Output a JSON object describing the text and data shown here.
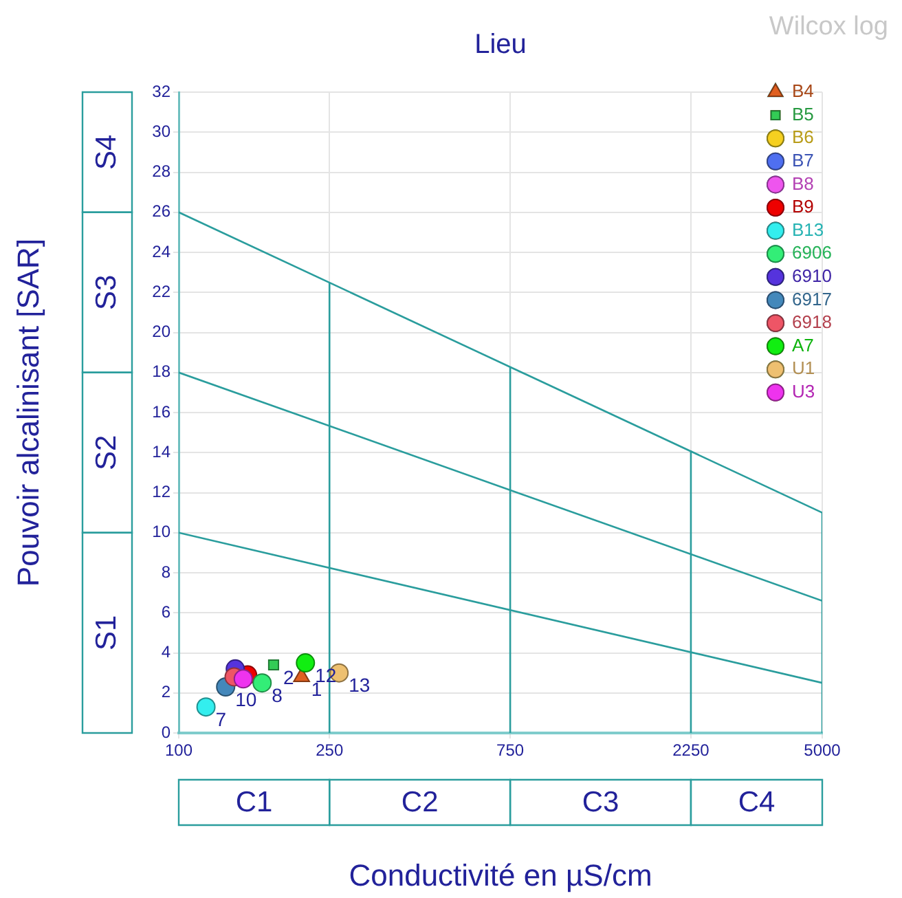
{
  "chart_data": {
    "type": "scatter",
    "title": "Lieu",
    "xlabel": "Conductivité en µS/cm",
    "ylabel": "Pouvoir alcalinisant [SAR]",
    "annotations": [
      "Wilcox log",
      "S1",
      "S2",
      "S3",
      "S4",
      "C1",
      "C2",
      "C3",
      "C4",
      {
        "text": "1",
        "x": 211,
        "y": 2.8
      },
      {
        "text": "2",
        "x": 178,
        "y": 3.4
      },
      {
        "text": "7",
        "x": 118,
        "y": 1.3
      },
      {
        "text": "8",
        "x": 166,
        "y": 2.5
      },
      {
        "text": "10",
        "x": 133,
        "y": 2.3
      },
      {
        "text": "12",
        "x": 216,
        "y": 3.5
      },
      {
        "text": "13",
        "x": 265,
        "y": 3.0
      }
    ],
    "log": "x",
    "xlim": [
      100,
      5000
    ],
    "xticks": [
      100,
      250,
      750,
      2250,
      5000
    ],
    "ylim": [
      0,
      32
    ],
    "yticks": [
      0,
      2,
      4,
      6,
      8,
      10,
      12,
      14,
      16,
      18,
      20,
      22,
      24,
      26,
      28,
      30,
      32
    ],
    "grid": true,
    "legend": "top right",
    "series": [
      {
        "type": "line",
        "color": "#2a9d9d",
        "x": [
          100,
          5000
        ],
        "values": [
          26,
          11
        ]
      },
      {
        "type": "line",
        "color": "#2a9d9d",
        "x": [
          100,
          5000
        ],
        "values": [
          18,
          6.6
        ]
      },
      {
        "type": "line",
        "color": "#2a9d9d",
        "x": [
          100,
          5000
        ],
        "values": [
          10,
          2.5
        ]
      },
      {
        "type": "line",
        "color": "#2a9d9d",
        "x": [
          250,
          250
        ],
        "values": [
          0,
          22.5
        ]
      },
      {
        "type": "line",
        "color": "#2a9d9d",
        "x": [
          750,
          750
        ],
        "values": [
          0,
          18.3
        ]
      },
      {
        "type": "line",
        "color": "#2a9d9d",
        "x": [
          2250,
          2250
        ],
        "values": [
          0,
          14.1
        ]
      },
      {
        "type": "line",
        "color": "#2a9d9d",
        "x": [
          5000,
          5000
        ],
        "values": [
          0,
          11
        ]
      },
      {
        "name": "B4",
        "marker": "triangle",
        "color": "#e06020",
        "x": [
          211
        ],
        "values": [
          2.8
        ]
      },
      {
        "name": "B5",
        "marker": "square",
        "color": "#33cc55",
        "x": [
          178
        ],
        "values": [
          3.4
        ]
      },
      {
        "name": "B6",
        "marker": "circle",
        "color": "#f5d020",
        "x": [
          null
        ],
        "values": [
          null
        ]
      },
      {
        "name": "B7",
        "marker": "circle",
        "color": "#4f6ff0",
        "x": [
          null
        ],
        "values": [
          null
        ]
      },
      {
        "name": "B8",
        "marker": "circle",
        "color": "#ee55ee",
        "x": [
          null
        ],
        "values": [
          null
        ]
      },
      {
        "name": "B9",
        "marker": "circle",
        "color": "#ee0000",
        "x": [
          152
        ],
        "values": [
          2.9
        ]
      },
      {
        "name": "B13",
        "marker": "circle",
        "color": "#33eeee",
        "x": [
          118
        ],
        "values": [
          1.3
        ]
      },
      {
        "name": "6906",
        "marker": "circle",
        "color": "#33ee77",
        "x": [
          166
        ],
        "values": [
          2.5
        ]
      },
      {
        "name": "6910",
        "marker": "circle",
        "color": "#5533dd",
        "x": [
          141
        ],
        "values": [
          3.2
        ]
      },
      {
        "name": "6917",
        "marker": "circle",
        "color": "#4488bb",
        "x": [
          133
        ],
        "values": [
          2.3
        ]
      },
      {
        "name": "6918",
        "marker": "circle",
        "color": "#ee5566",
        "x": [
          140
        ],
        "values": [
          2.8
        ]
      },
      {
        "name": "A7",
        "marker": "circle",
        "color": "#11ee11",
        "x": [
          216
        ],
        "values": [
          3.5
        ]
      },
      {
        "name": "U1",
        "marker": "circle",
        "color": "#eec070",
        "x": [
          265
        ],
        "values": [
          3.0
        ]
      },
      {
        "name": "U3",
        "marker": "circle",
        "color": "#ee33ee",
        "x": [
          148
        ],
        "values": [
          2.7
        ]
      }
    ]
  }
}
